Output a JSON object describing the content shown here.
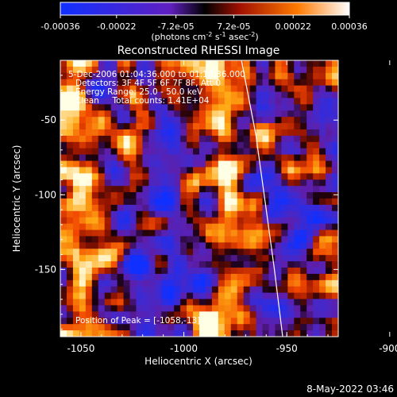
{
  "chart_data": {
    "type": "heatmap",
    "title": "Reconstructed RHESSI Image",
    "xlabel": "Heliocentric X (arcsec)",
    "ylabel": "Heliocentric Y (arcsec)",
    "xlim": [
      -1060,
      -925
    ],
    "ylim": [
      -195,
      -10
    ],
    "x_ticks": [
      "-1050",
      "-1000",
      "-950",
      "-900"
    ],
    "x_tick_values": [
      -1050,
      -1000,
      -950,
      -900
    ],
    "y_ticks": [
      "-50",
      "-100",
      "-150"
    ],
    "y_tick_values": [
      -50,
      -100,
      -150
    ],
    "colorbar": {
      "range": [
        -0.00036,
        0.00036
      ],
      "ticks": [
        "-0.00036",
        "-0.00022",
        "-7.2e-05",
        "7.2e-05",
        "0.00022",
        "0.00036"
      ],
      "tick_values": [
        -0.00036,
        -0.00022,
        -7.2e-05,
        7.2e-05,
        0.00022,
        0.00036
      ],
      "units_main": "(photons cm",
      "units_exp1": "-2",
      "units_mid": " s",
      "units_exp2": "-1",
      "units_tail": " asec",
      "units_exp3": "-2",
      "units_close": ")"
    },
    "annotations": [
      "5-Dec-2006 01:04:36.000 to 01:10:36.000",
      "Detectors: 3F 4F 5F 6F 7F 8F, Att 0",
      "Energy Range: 25.0 - 50.0 keV",
      "Clean     Total counts: 1.41E+04"
    ],
    "peak_label": "Position of Peak = [-1058,-13]",
    "limb_curve": [
      [
        -972,
        -10
      ],
      [
        -965,
        -60
      ],
      [
        -960,
        -110
      ],
      [
        -956,
        -150
      ],
      [
        -952,
        -195
      ]
    ],
    "grid": false,
    "colormap": "rhessi-diverging",
    "pattern_seed": 7
  },
  "footer": {
    "timestamp": "8-May-2022 03:46"
  },
  "colors": {
    "background": "#000000",
    "axes": "#ffffff",
    "limb": "#ffffff",
    "cmap_neg_low": "#1030ff",
    "cmap_neg_mid": "#6020c0",
    "cmap_zero": "#000000",
    "cmap_pos_low": "#a01000",
    "cmap_pos_mid": "#ff7a00",
    "cmap_pos_high": "#ffffff"
  }
}
